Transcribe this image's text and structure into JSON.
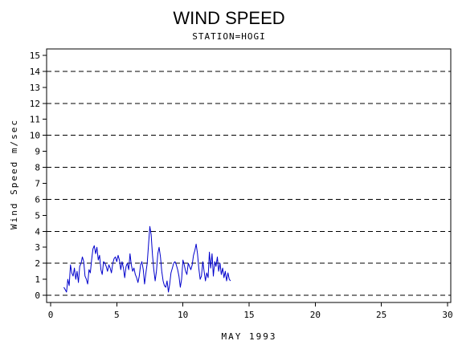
{
  "chart_data": {
    "type": "line",
    "title": "WIND SPEED",
    "subtitle": "STATION=HOGI",
    "xlabel": "MAY 1993",
    "ylabel": "Wind Speed m/sec",
    "xlim": [
      0,
      30
    ],
    "ylim": [
      0,
      15.5
    ],
    "xticks": [
      0,
      5,
      10,
      15,
      20,
      25,
      30
    ],
    "yticks": [
      0,
      1,
      2,
      3,
      4,
      5,
      6,
      7,
      8,
      9,
      10,
      11,
      12,
      13,
      14,
      15
    ],
    "grid_y": [
      0,
      2,
      4,
      6,
      8,
      10,
      12,
      14
    ],
    "grid": "horizontal dashed at even values",
    "colors": {
      "series": "#0000cc",
      "axis": "#000000",
      "grid": "#000000"
    },
    "series": [
      {
        "name": "",
        "x": [
          1.0,
          1.2,
          1.3,
          1.4,
          1.5,
          1.6,
          1.7,
          1.8,
          1.9,
          2.0,
          2.1,
          2.2,
          2.3,
          2.4,
          2.5,
          2.6,
          2.7,
          2.8,
          2.9,
          3.0,
          3.1,
          3.2,
          3.3,
          3.4,
          3.5,
          3.6,
          3.7,
          3.8,
          3.9,
          4.0,
          4.1,
          4.2,
          4.3,
          4.4,
          4.5,
          4.6,
          4.7,
          4.8,
          4.9,
          5.0,
          5.1,
          5.2,
          5.3,
          5.4,
          5.5,
          5.6,
          5.7,
          5.8,
          5.9,
          6.0,
          6.1,
          6.2,
          6.3,
          6.4,
          6.5,
          6.6,
          6.7,
          6.8,
          6.9,
          7.0,
          7.1,
          7.2,
          7.3,
          7.4,
          7.5,
          7.6,
          7.7,
          7.8,
          7.9,
          8.0,
          8.1,
          8.2,
          8.3,
          8.4,
          8.5,
          8.6,
          8.7,
          8.8,
          8.9,
          9.0,
          9.1,
          9.2,
          9.3,
          9.4,
          9.5,
          9.6,
          9.7,
          9.8,
          9.9,
          10.0,
          10.1,
          10.2,
          10.3,
          10.4,
          10.5,
          10.6,
          10.7,
          10.8,
          10.9,
          11.0,
          11.1,
          11.2,
          11.3,
          11.4,
          11.5,
          11.6,
          11.7,
          11.8,
          11.9,
          12.0,
          12.1,
          12.2,
          12.3,
          12.4,
          12.5,
          12.6,
          12.7,
          12.8,
          12.9,
          13.0,
          13.1,
          13.2,
          13.3,
          13.4,
          13.5,
          13.6
        ],
        "values": [
          0.5,
          0.2,
          1.0,
          0.6,
          1.9,
          1.4,
          1.2,
          1.7,
          1.0,
          1.5,
          0.8,
          1.8,
          2.0,
          2.4,
          2.1,
          1.2,
          1.0,
          0.7,
          1.6,
          1.4,
          2.2,
          2.9,
          3.1,
          2.6,
          3.0,
          2.2,
          2.5,
          1.6,
          1.3,
          2.1,
          2.0,
          1.8,
          1.5,
          1.9,
          1.7,
          1.4,
          2.0,
          2.3,
          2.4,
          2.1,
          2.5,
          2.2,
          1.6,
          2.1,
          1.7,
          1.1,
          1.8,
          2.0,
          1.6,
          2.6,
          1.9,
          1.5,
          1.7,
          1.3,
          1.1,
          0.8,
          1.2,
          1.9,
          2.1,
          1.6,
          0.7,
          1.4,
          2.0,
          3.2,
          4.3,
          3.8,
          2.5,
          1.6,
          0.9,
          1.5,
          2.6,
          3.0,
          2.4,
          1.5,
          0.9,
          0.6,
          0.5,
          0.9,
          0.2,
          0.7,
          1.4,
          1.7,
          2.0,
          2.1,
          1.9,
          1.6,
          1.2,
          0.5,
          1.0,
          2.2,
          1.9,
          1.5,
          1.3,
          2.0,
          1.8,
          1.6,
          1.9,
          2.5,
          2.8,
          3.2,
          2.6,
          1.7,
          1.0,
          1.2,
          2.1,
          1.5,
          0.9,
          1.4,
          1.1,
          2.7,
          1.7,
          2.6,
          1.2,
          2.1,
          1.8,
          2.4,
          1.5,
          2.0,
          1.3,
          1.7,
          1.1,
          1.5,
          0.9,
          1.4,
          1.0,
          0.9
        ]
      }
    ]
  }
}
